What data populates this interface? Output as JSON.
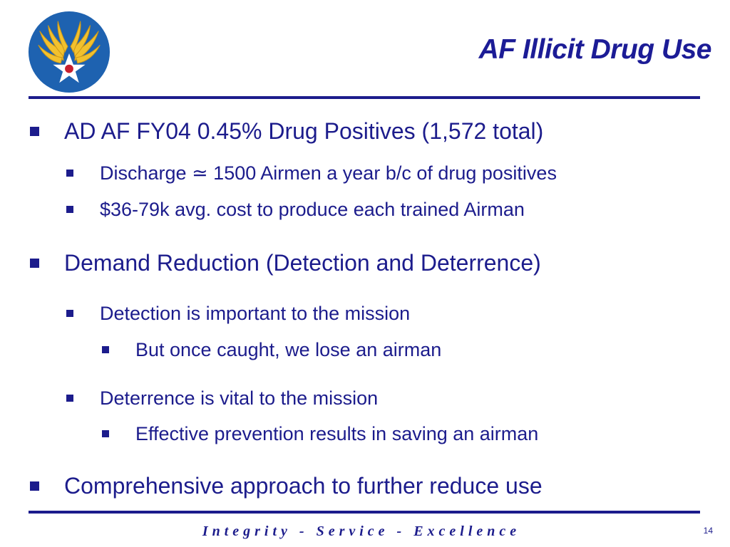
{
  "slide": {
    "title": "AF Illicit Drug Use",
    "motto": "Integrity - Service - Excellence",
    "page_number": "14",
    "logo_icon": "air-force-wings-star-logo"
  },
  "colors": {
    "primary": "#1c1c8c",
    "logo_blue": "#1e62b0",
    "logo_gold": "#f2c12e",
    "logo_red": "#c8202e"
  },
  "bullets": [
    {
      "level": 1,
      "text": "AD AF FY04 0.45% Drug Positives (1,572 total)"
    },
    {
      "level": 2,
      "text": "Discharge ≃ 1500 Airmen a year b/c of drug positives"
    },
    {
      "level": 2,
      "text": "$36-79k avg. cost to produce each trained Airman"
    },
    {
      "level": 1,
      "text": "Demand Reduction (Detection and Deterrence)"
    },
    {
      "level": 2,
      "text": "Detection is important to the mission"
    },
    {
      "level": 3,
      "text": "But once caught, we lose an airman"
    },
    {
      "level": 2,
      "text": "Deterrence is vital to the mission"
    },
    {
      "level": 3,
      "text": "Effective prevention results in saving an airman"
    },
    {
      "level": 1,
      "text": "Comprehensive approach to further reduce use"
    }
  ]
}
